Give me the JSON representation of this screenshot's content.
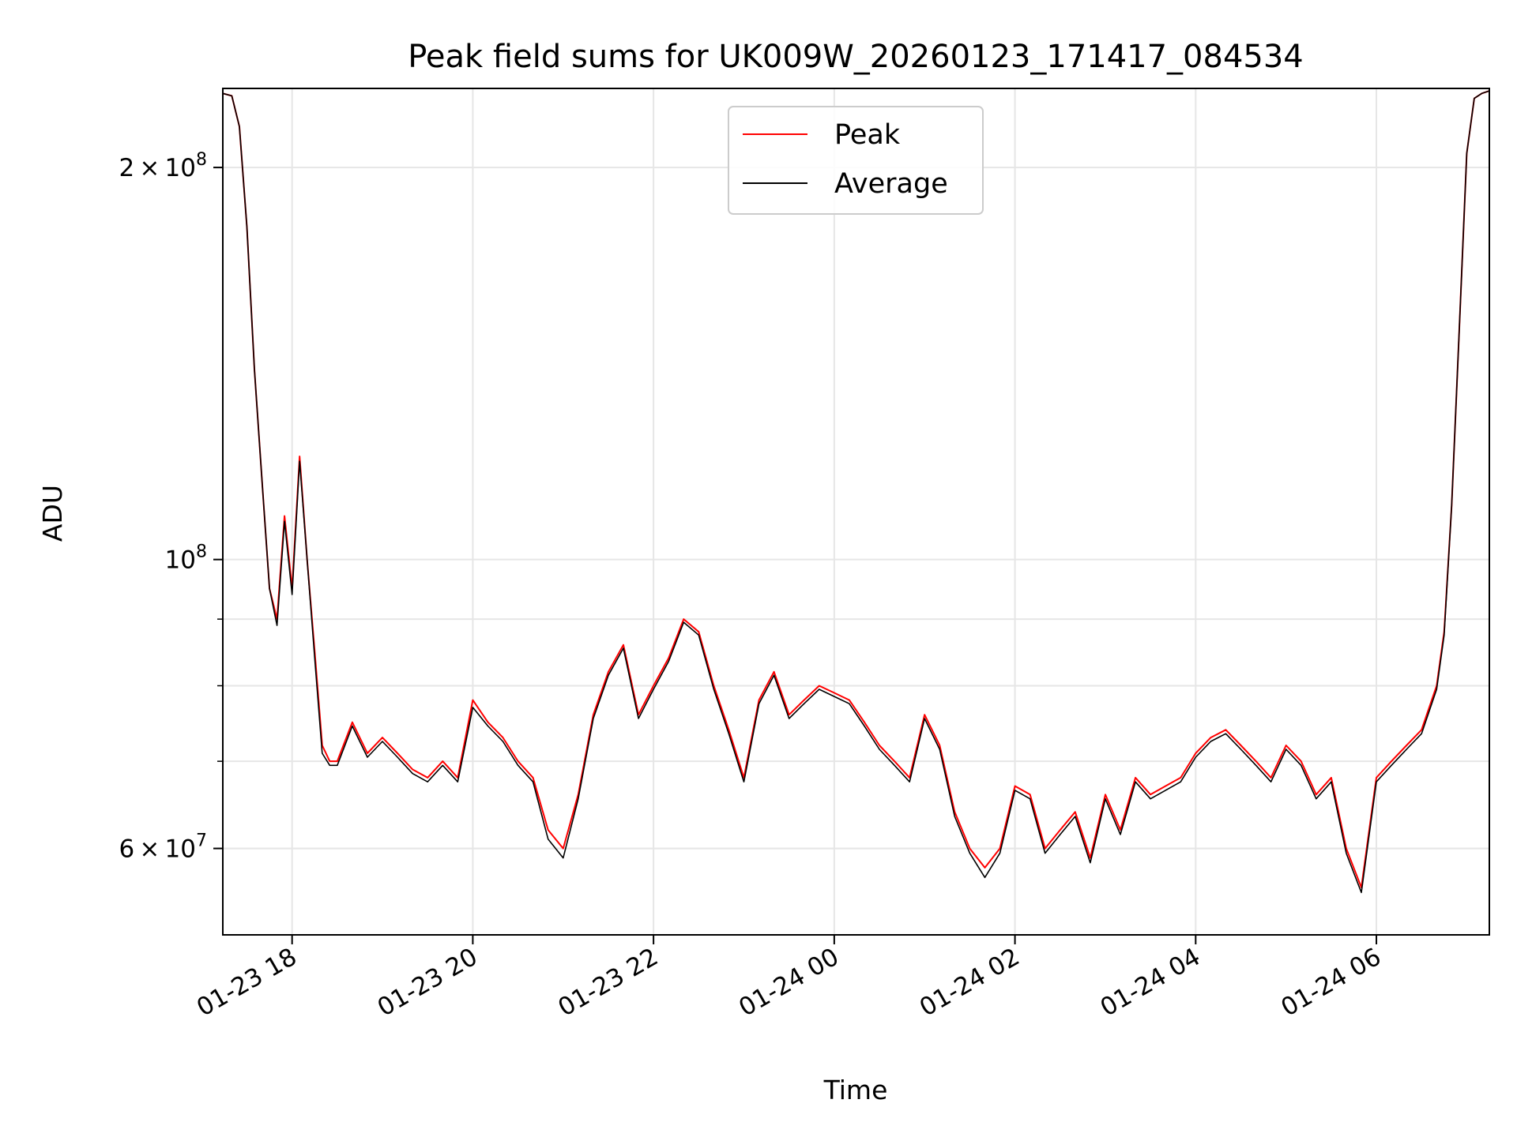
{
  "chart_data": {
    "type": "line",
    "title": "Peak field sums for UK009W_20260123_171417_084534",
    "xlabel": "Time",
    "ylabel": "ADU",
    "y_scale": "log",
    "ylim": [
      51500000,
      230000000
    ],
    "xlim": [
      "01-23 17:14",
      "01-24 07:15"
    ],
    "grid": true,
    "legend_position": "top-center",
    "x_ticks": [
      "01-23 18",
      "01-23 20",
      "01-23 22",
      "01-24 00",
      "01-24 02",
      "01-24 04",
      "01-24 06"
    ],
    "y_major_ticks": [
      {
        "value": 100000000,
        "base": "10",
        "exp": "8"
      },
      {
        "value": 200000000,
        "mant": "2",
        "base": "10",
        "exp": "8"
      },
      {
        "value": 60000000,
        "mant": "6",
        "base": "10",
        "exp": "7"
      }
    ],
    "y_minor_ticks": [
      60000000,
      70000000,
      80000000,
      90000000
    ],
    "x": [
      "01-23 17:14",
      "01-23 17:20",
      "01-23 17:25",
      "01-23 17:30",
      "01-23 17:35",
      "01-23 17:40",
      "01-23 17:45",
      "01-23 17:50",
      "01-23 17:55",
      "01-23 18:00",
      "01-23 18:05",
      "01-23 18:10",
      "01-23 18:15",
      "01-23 18:20",
      "01-23 18:25",
      "01-23 18:30",
      "01-23 18:40",
      "01-23 18:50",
      "01-23 19:00",
      "01-23 19:10",
      "01-23 19:20",
      "01-23 19:30",
      "01-23 19:40",
      "01-23 19:50",
      "01-23 20:00",
      "01-23 20:10",
      "01-23 20:20",
      "01-23 20:30",
      "01-23 20:40",
      "01-23 20:50",
      "01-23 21:00",
      "01-23 21:10",
      "01-23 21:20",
      "01-23 21:30",
      "01-23 21:40",
      "01-23 21:50",
      "01-23 22:00",
      "01-23 22:10",
      "01-23 22:20",
      "01-23 22:30",
      "01-23 22:40",
      "01-23 22:50",
      "01-23 23:00",
      "01-23 23:10",
      "01-23 23:20",
      "01-23 23:30",
      "01-23 23:40",
      "01-23 23:50",
      "01-24 00:00",
      "01-24 00:10",
      "01-24 00:20",
      "01-24 00:30",
      "01-24 00:40",
      "01-24 00:50",
      "01-24 01:00",
      "01-24 01:10",
      "01-24 01:20",
      "01-24 01:30",
      "01-24 01:40",
      "01-24 01:50",
      "01-24 02:00",
      "01-24 02:10",
      "01-24 02:20",
      "01-24 02:30",
      "01-24 02:40",
      "01-24 02:50",
      "01-24 03:00",
      "01-24 03:10",
      "01-24 03:20",
      "01-24 03:30",
      "01-24 03:40",
      "01-24 03:50",
      "01-24 04:00",
      "01-24 04:10",
      "01-24 04:20",
      "01-24 04:30",
      "01-24 04:40",
      "01-24 04:50",
      "01-24 05:00",
      "01-24 05:10",
      "01-24 05:20",
      "01-24 05:30",
      "01-24 05:40",
      "01-24 05:50",
      "01-24 06:00",
      "01-24 06:10",
      "01-24 06:20",
      "01-24 06:30",
      "01-24 06:40",
      "01-24 06:45",
      "01-24 06:50",
      "01-24 06:55",
      "01-24 07:00",
      "01-24 07:05",
      "01-24 07:10",
      "01-24 07:15"
    ],
    "series": [
      {
        "name": "Peak",
        "color": "#ff0000",
        "values": [
          228000000,
          227000000,
          215000000,
          180000000,
          140000000,
          115000000,
          95000000,
          90000000,
          108000000,
          95000000,
          120000000,
          100000000,
          85000000,
          72000000,
          70000000,
          70000000,
          75000000,
          71000000,
          73000000,
          71000000,
          69000000,
          68000000,
          70000000,
          68000000,
          78000000,
          75000000,
          73000000,
          70000000,
          68000000,
          62000000,
          60000000,
          66000000,
          76000000,
          82000000,
          86000000,
          76000000,
          80000000,
          84000000,
          90000000,
          88000000,
          80000000,
          74000000,
          68000000,
          78000000,
          82000000,
          76000000,
          78000000,
          80000000,
          79000000,
          78000000,
          75000000,
          72000000,
          70000000,
          68000000,
          76000000,
          72000000,
          64000000,
          60000000,
          58000000,
          60000000,
          67000000,
          66000000,
          60000000,
          62000000,
          64000000,
          59000000,
          66000000,
          62000000,
          68000000,
          66000000,
          67000000,
          68000000,
          71000000,
          73000000,
          74000000,
          72000000,
          70000000,
          68000000,
          72000000,
          70000000,
          66000000,
          68000000,
          60000000,
          56000000,
          68000000,
          70000000,
          72000000,
          74000000,
          80000000,
          88000000,
          110000000,
          150000000,
          205000000,
          226000000,
          228000000,
          229000000
        ]
      },
      {
        "name": "Average",
        "color": "#000000",
        "values": [
          228000000,
          227000000,
          215000000,
          180000000,
          140000000,
          115000000,
          95000000,
          89000000,
          107000000,
          94000000,
          119000000,
          100000000,
          84000000,
          71000000,
          69500000,
          69500000,
          74500000,
          70500000,
          72500000,
          70500000,
          68500000,
          67500000,
          69500000,
          67500000,
          77000000,
          74500000,
          72500000,
          69500000,
          67500000,
          61000000,
          59000000,
          65500000,
          75500000,
          81500000,
          85500000,
          75500000,
          79500000,
          83500000,
          89500000,
          87500000,
          79500000,
          73500000,
          67500000,
          77500000,
          81500000,
          75500000,
          77500000,
          79500000,
          78500000,
          77500000,
          74500000,
          71500000,
          69500000,
          67500000,
          75500000,
          71500000,
          63500000,
          59500000,
          57000000,
          59500000,
          66500000,
          65500000,
          59500000,
          61500000,
          63500000,
          58500000,
          65500000,
          61500000,
          67500000,
          65500000,
          66500000,
          67500000,
          70500000,
          72500000,
          73500000,
          71500000,
          69500000,
          67500000,
          71500000,
          69500000,
          65500000,
          67500000,
          59500000,
          55500000,
          67500000,
          69500000,
          71500000,
          73500000,
          79500000,
          87500000,
          110000000,
          150000000,
          205000000,
          226000000,
          228000000,
          229000000
        ]
      }
    ]
  }
}
